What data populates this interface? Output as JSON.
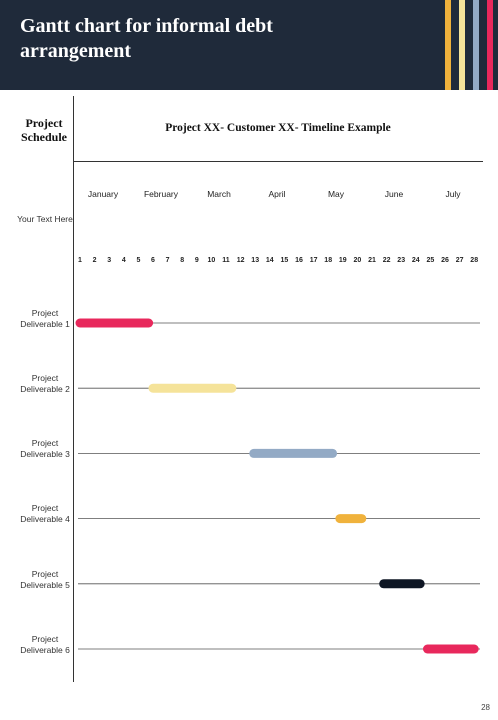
{
  "header": {
    "title": "Gantt chart for informal debt arrangement",
    "stripe_colors": [
      "#f0b23c",
      "#f5e39a",
      "#93aac5",
      "#e8285c"
    ],
    "background": "#1f2a3a"
  },
  "sidebar_header": "Project Schedule",
  "row_header_label": "Your Text Here",
  "page_number": "28",
  "chart_data": {
    "type": "gantt",
    "title": "Project XX- Customer XX- Timeline Example",
    "months": [
      "January",
      "February",
      "March",
      "April",
      "May",
      "June",
      "July"
    ],
    "ticks": [
      "1",
      "2",
      "3",
      "4",
      "5",
      "6",
      "7",
      "8",
      "9",
      "10",
      "11",
      "12",
      "13",
      "14",
      "15",
      "16",
      "17",
      "18",
      "19",
      "20",
      "21",
      "22",
      "23",
      "24",
      "25",
      "26",
      "27",
      "28"
    ],
    "tasks": [
      {
        "label": "Project Deliverable 1",
        "start": 1,
        "end": 5.7,
        "color": "#e8285c"
      },
      {
        "label": "Project Deliverable 2",
        "start": 6,
        "end": 11.4,
        "color": "#f5e39a"
      },
      {
        "label": "Project Deliverable 3",
        "start": 12.9,
        "end": 18.3,
        "color": "#93aac5"
      },
      {
        "label": "Project Deliverable 4",
        "start": 18.8,
        "end": 20.3,
        "color": "#f0b23c"
      },
      {
        "label": "Project Deliverable 5",
        "start": 21.8,
        "end": 24.3,
        "color": "#0e1624"
      },
      {
        "label": "Project Deliverable 6",
        "start": 24.8,
        "end": 28,
        "color": "#e8285c"
      }
    ]
  }
}
